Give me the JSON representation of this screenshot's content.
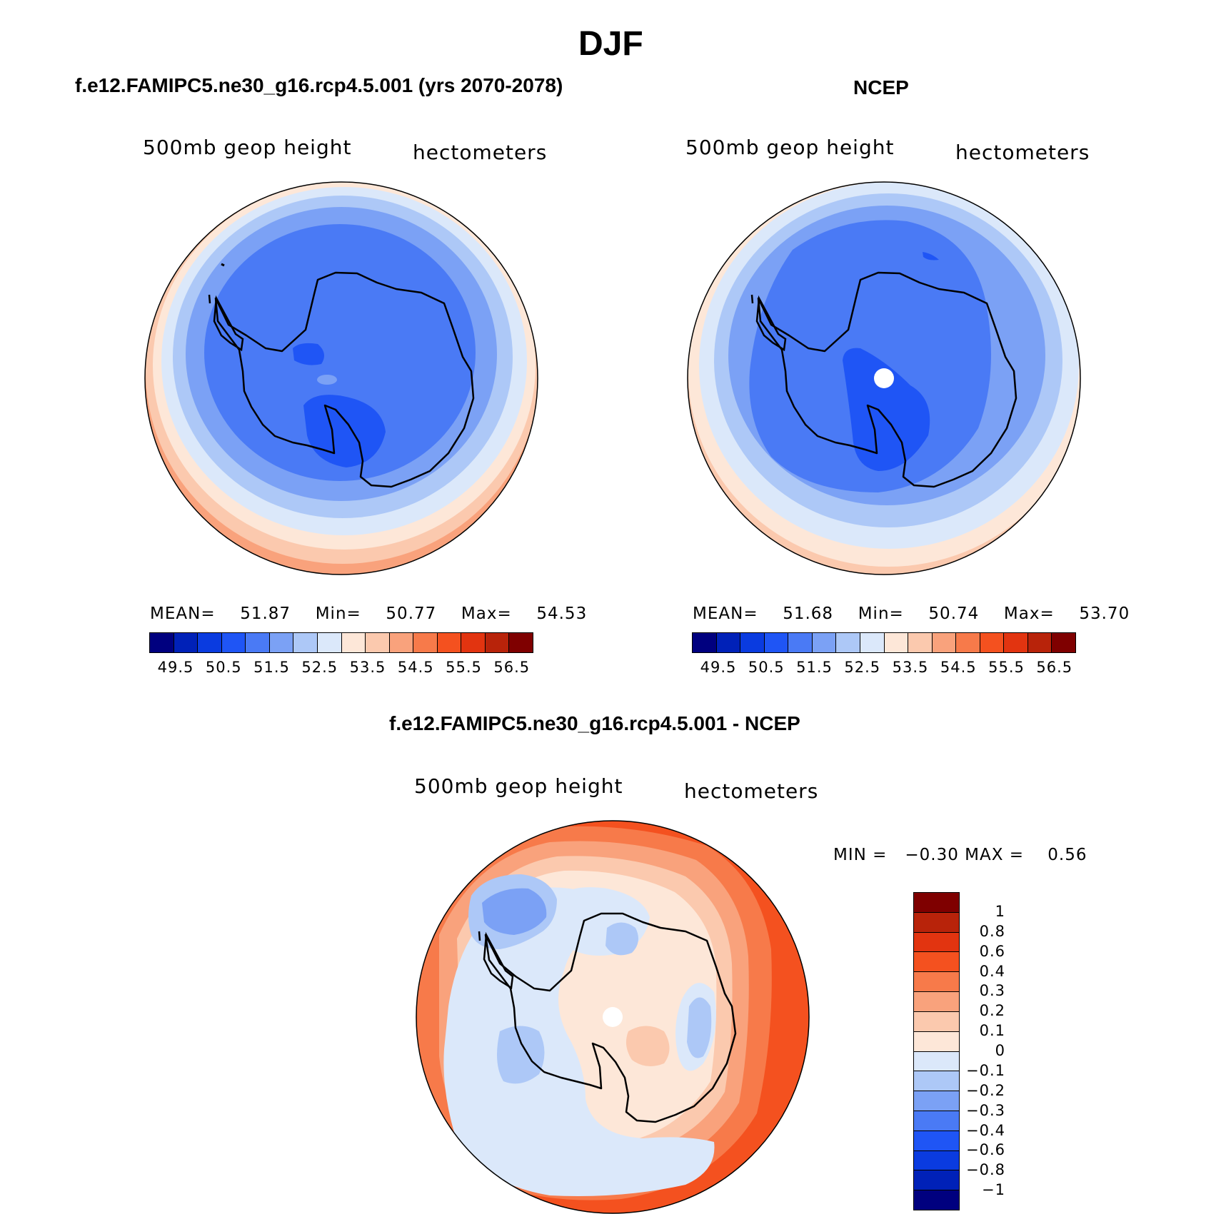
{
  "figure": {
    "title": "DJF"
  },
  "panels": {
    "model": {
      "case_title": "f.e12.FAMIPC5.ne30_g16.rcp4.5.001 (yrs 2070-2078)",
      "variable": "500mb  geop  height",
      "units": "hectometers",
      "stats": {
        "mean_label": "MEAN=",
        "mean_value": "51.87",
        "min_label": "Min=",
        "min_value": "50.77",
        "max_label": "Max=",
        "max_value": "54.53"
      },
      "colorbar_ticks": [
        "49.5",
        "50.5",
        "51.5",
        "52.5",
        "53.5",
        "54.5",
        "55.5",
        "56.5"
      ]
    },
    "obs": {
      "case_title": "NCEP",
      "variable": "500mb  geop  height",
      "units": "hectometers",
      "stats": {
        "mean_label": "MEAN=",
        "mean_value": "51.68",
        "min_label": "Min=",
        "min_value": "50.74",
        "max_label": "Max=",
        "max_value": "53.70"
      },
      "colorbar_ticks": [
        "49.5",
        "50.5",
        "51.5",
        "52.5",
        "53.5",
        "54.5",
        "55.5",
        "56.5"
      ]
    },
    "diff": {
      "case_title": "f.e12.FAMIPC5.ne30_g16.rcp4.5.001 - NCEP",
      "variable": "500mb  geop  height",
      "units": "hectometers",
      "minmax_text": "MIN =   −0.30 MAX =    0.56",
      "colorbar_ticks": [
        "1",
        "0.8",
        "0.6",
        "0.4",
        "0.3",
        "0.2",
        "0.1",
        "0",
        "−0.1",
        "−0.2",
        "−0.3",
        "−0.4",
        "−0.6",
        "−0.8",
        "−1"
      ]
    }
  },
  "colors": {
    "abs_scale": [
      "#00007f",
      "#0021b8",
      "#0a3be0",
      "#1f55f5",
      "#4a7af5",
      "#7ba1f5",
      "#adc8f7",
      "#dbe8fa",
      "#fde7d8",
      "#fbc9ae",
      "#f9a27c",
      "#f77a4a",
      "#f4511f",
      "#e23410",
      "#b8230a",
      "#7f0000"
    ],
    "diff_scale": [
      "#7f0000",
      "#b8230a",
      "#e23410",
      "#f4511f",
      "#f77a4a",
      "#f9a27c",
      "#fbc9ae",
      "#fde7d8",
      "#dbe8fa",
      "#adc8f7",
      "#7ba1f5",
      "#4a7af5",
      "#1f55f5",
      "#0a3be0",
      "#0021b8",
      "#00007f"
    ]
  }
}
